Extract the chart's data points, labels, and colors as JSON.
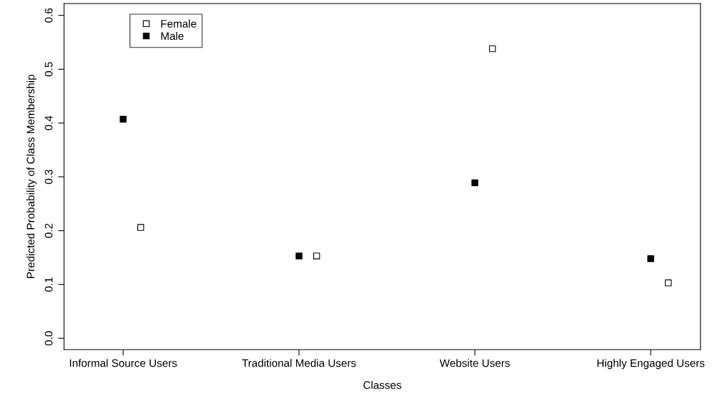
{
  "chart_data": {
    "type": "scatter",
    "xlabel": "Classes",
    "ylabel": "Predicted Probability of Class Membership",
    "ylim": [
      -0.021,
      0.622
    ],
    "categories": [
      "Informal Source Users",
      "Traditional Media Users",
      "Website Users",
      "Highly Engaged Users"
    ],
    "yticks": [
      {
        "value": 0,
        "label": "0.0"
      },
      0.1,
      0.2,
      0.3,
      0.4,
      0.5,
      0.6
    ],
    "series": [
      {
        "name": "Female",
        "color": "#ffffff",
        "values": [
          0.206,
          0.153,
          0.538,
          0.103
        ]
      },
      {
        "name": "Male",
        "color": "#000000",
        "values": [
          0.407,
          0.153,
          0.289,
          0.148
        ]
      }
    ],
    "marker": "square",
    "legend": "top left",
    "grid": false
  }
}
